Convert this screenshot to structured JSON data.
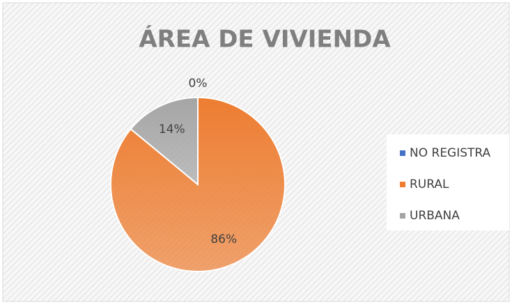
{
  "chart_data": {
    "type": "pie",
    "title": "ÁREA DE VIVIENDA",
    "categories": [
      "NO REGISTRA",
      "RURAL",
      "URBANA"
    ],
    "values": [
      0,
      86,
      14
    ],
    "value_labels": [
      "0%",
      "86%",
      "14%"
    ],
    "colors": [
      "#4472c4",
      "#ed7d31",
      "#a5a5a5"
    ],
    "legend": "right"
  }
}
